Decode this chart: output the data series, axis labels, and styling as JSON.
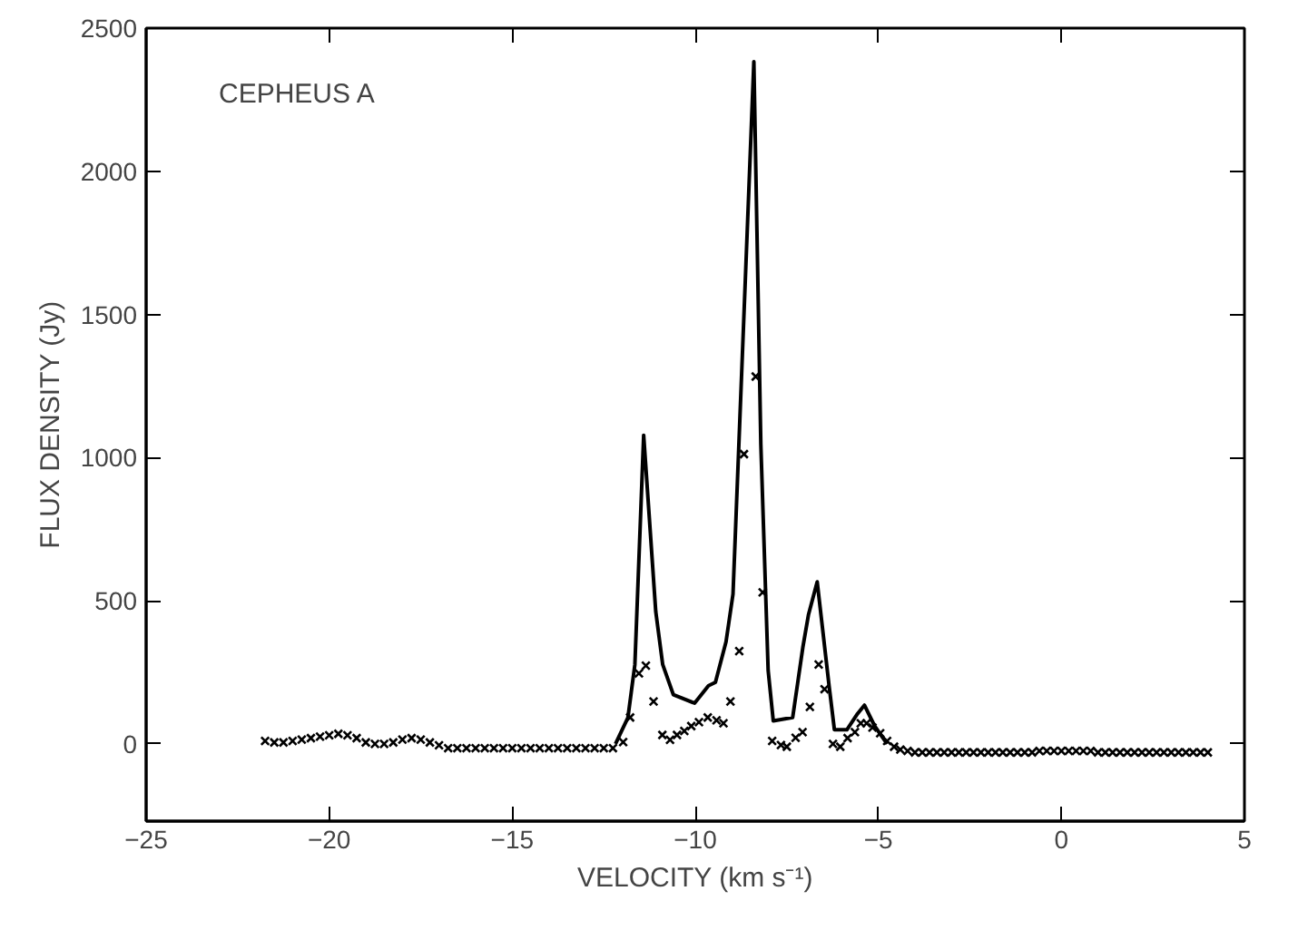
{
  "chart_data": {
    "type": "line",
    "xlabel": "VELOCITY (km s⁻¹)",
    "ylabel": "FLUX DENSITY (Jy)",
    "annotations": [
      "CEPHEUS A"
    ],
    "xlim": [
      -25,
      5
    ],
    "xticks": [
      -25,
      -20,
      -15,
      -10,
      -5,
      0,
      5
    ],
    "ylim": [
      -270,
      2500
    ],
    "yticks": [
      0,
      500,
      1000,
      1500,
      2000,
      2500
    ],
    "series": [
      {
        "color": "#000000",
        "line_style": "solid",
        "x": [
          -12.18,
          -11.84,
          -11.65,
          -11.41,
          -11.08,
          -10.89,
          -10.6,
          -10.02,
          -9.64,
          -9.45,
          -9.16,
          -8.97,
          -8.4,
          -8.21,
          -8.01,
          -7.87,
          -7.34,
          -7.06,
          -6.91,
          -6.67,
          -6.34,
          -6.2,
          -5.86,
          -5.57,
          -5.38,
          -5.1,
          -4.76
        ],
        "values": [
          0,
          92,
          277,
          1078,
          462,
          277,
          172,
          142,
          203,
          215,
          357,
          523,
          2383,
          1047,
          257,
          80,
          92,
          339,
          450,
          566,
          197,
          49,
          49,
          105,
          135,
          62,
          0
        ]
      },
      {
        "type": "scatter",
        "color": "#000000",
        "marker": "cross",
        "x": [
          -21.75,
          -21.5,
          -21.25,
          -21.0,
          -20.75,
          -20.5,
          -20.25,
          -20.0,
          -19.75,
          -19.5,
          -19.25,
          -19.0,
          -18.75,
          -18.5,
          -18.25,
          -18.0,
          -17.75,
          -17.5,
          -17.25,
          -17.0,
          -16.75,
          -16.5,
          -16.25,
          -16.0,
          -15.75,
          -15.5,
          -15.25,
          -15.0,
          -14.75,
          -14.5,
          -14.25,
          -14.0,
          -13.75,
          -13.5,
          -13.25,
          -13.0,
          -12.75,
          -12.5,
          -12.25,
          -11.97,
          -11.78,
          -11.54,
          -11.35,
          -11.14,
          -10.9,
          -10.69,
          -10.5,
          -10.3,
          -10.11,
          -9.9,
          -9.66,
          -9.42,
          -9.23,
          -9.04,
          -8.8,
          -8.67,
          -8.35,
          -8.16,
          -7.9,
          -7.66,
          -7.5,
          -7.26,
          -7.07,
          -6.87,
          -6.63,
          -6.47,
          -6.24,
          -6.04,
          -5.84,
          -5.64,
          -5.48,
          -5.32,
          -5.16,
          -4.95,
          -4.76,
          -4.57,
          -4.4,
          -4.2,
          -4.0,
          -3.8,
          -3.6,
          -3.4,
          -3.2,
          -3.0,
          -2.8,
          -2.6,
          -2.4,
          -2.2,
          -2.0,
          -1.8,
          -1.6,
          -1.4,
          -1.2,
          -1.0,
          -0.8,
          -0.6,
          -0.4,
          -0.2,
          0.0,
          0.2,
          0.4,
          0.6,
          0.8,
          1.0,
          1.2,
          1.4,
          1.6,
          1.8,
          2.0,
          2.2,
          2.4,
          2.6,
          2.8,
          3.0,
          3.2,
          3.4,
          3.6,
          3.8,
          4.0
        ],
        "values": [
          10,
          5,
          5,
          10,
          15,
          20,
          25,
          30,
          35,
          30,
          20,
          5,
          0,
          0,
          5,
          15,
          20,
          15,
          5,
          -5,
          -15,
          -15,
          -15,
          -15,
          -15,
          -15,
          -15,
          -15,
          -15,
          -15,
          -15,
          -15,
          -15,
          -15,
          -15,
          -15,
          -15,
          -15,
          -15,
          6,
          92,
          246,
          273,
          148,
          31,
          14,
          31,
          45,
          62,
          76,
          92,
          82,
          72,
          148,
          324,
          1012,
          1283,
          529,
          10,
          -4,
          -10,
          21,
          41,
          129,
          277,
          191,
          0,
          -10,
          20,
          41,
          72,
          72,
          57,
          37,
          10,
          -10,
          -20,
          -25,
          -30,
          -30,
          -30,
          -30,
          -30,
          -30,
          -30,
          -30,
          -30,
          -30,
          -30,
          -30,
          -30,
          -30,
          -30,
          -30,
          -30,
          -25,
          -25,
          -25,
          -25,
          -25,
          -25,
          -25,
          -25,
          -30,
          -30,
          -30,
          -30,
          -30,
          -30,
          -30,
          -30,
          -30,
          -30,
          -30,
          -30,
          -30,
          -30,
          -30,
          -30
        ]
      }
    ]
  }
}
